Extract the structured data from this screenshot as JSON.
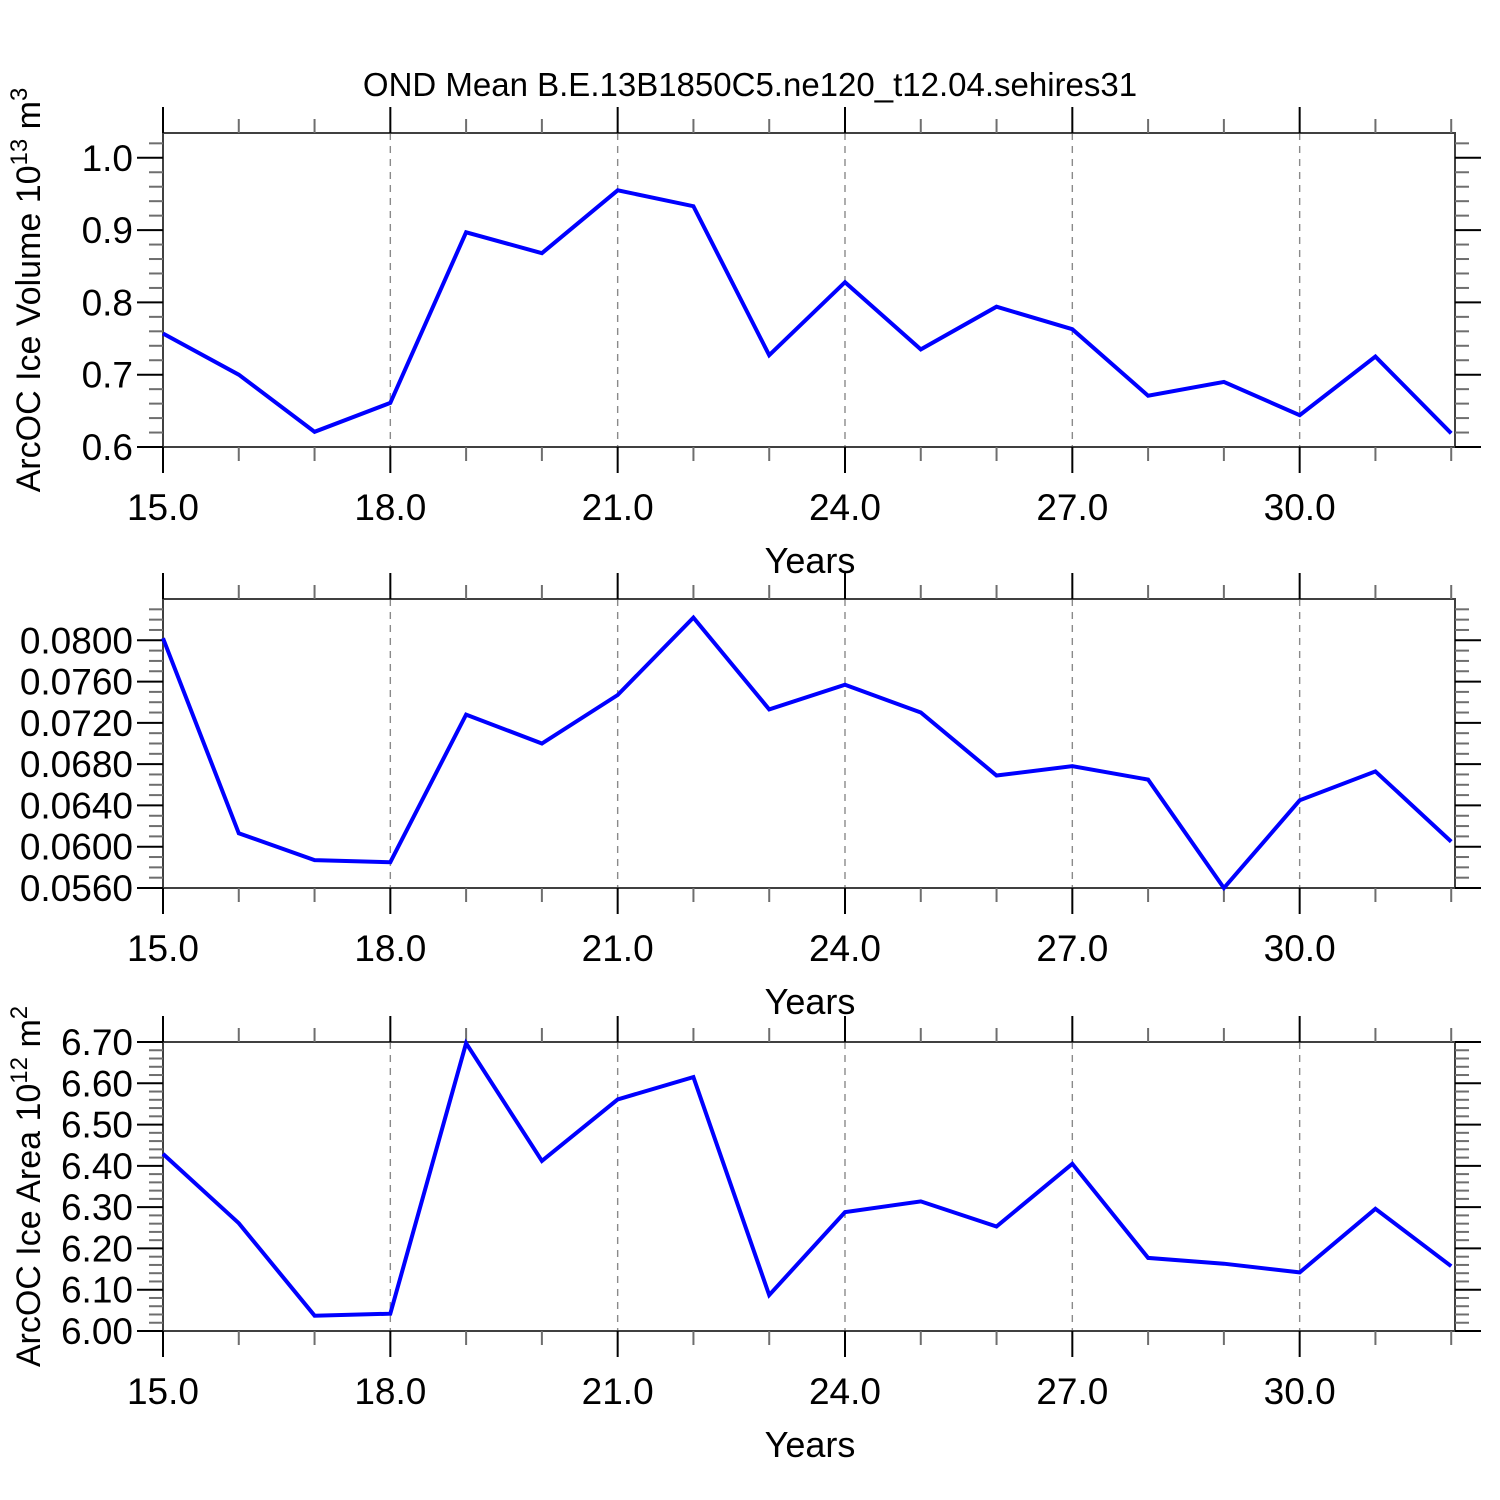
{
  "page_title": "OND Mean B.E.13B1850C5.ne120_t12.04.sehires31",
  "colors": {
    "line": "#0000ff",
    "frame": "#404040",
    "tick_major": "#000000",
    "tick_minor": "#6e6e6e",
    "grid": "#8a8a8a",
    "text": "#000000",
    "background": "#ffffff"
  },
  "chart_data": [
    {
      "type": "line",
      "name": "arcoc-ice-volume",
      "title": "",
      "ylabel": "ArcOC Ice Volume 10^13 m^3",
      "ylabel_parts": [
        {
          "text": "ArcOC Ice Volume 10"
        },
        {
          "text": "13",
          "sup": true
        },
        {
          "text": " m"
        },
        {
          "text": "3",
          "sup": true
        }
      ],
      "xlabel": "Years",
      "x": [
        15,
        16,
        17,
        18,
        19,
        20,
        21,
        22,
        23,
        24,
        25,
        26,
        27,
        28,
        29,
        30,
        31,
        32
      ],
      "values": [
        0.757,
        0.7,
        0.621,
        0.661,
        0.897,
        0.868,
        0.955,
        0.933,
        0.727,
        0.828,
        0.735,
        0.794,
        0.763,
        0.671,
        0.69,
        0.644,
        0.725,
        0.619
      ],
      "xlim": [
        15,
        32.05
      ],
      "ylim": [
        0.6,
        1.0343
      ],
      "yticks": [
        {
          "value": 1.0,
          "label": "1.0"
        },
        {
          "value": 0.9,
          "label": "0.9"
        },
        {
          "value": 0.8,
          "label": "0.8"
        },
        {
          "value": 0.7,
          "label": "0.7"
        },
        {
          "value": 0.6,
          "label": "0.6"
        }
      ],
      "ytick_minor_step": 0.02,
      "xticks": [
        {
          "value": 15,
          "label": "15.0"
        },
        {
          "value": 18,
          "label": "18.0"
        },
        {
          "value": 21,
          "label": "21.0"
        },
        {
          "value": 24,
          "label": "24.0"
        },
        {
          "value": 27,
          "label": "27.0"
        },
        {
          "value": 30,
          "label": "30.0"
        }
      ],
      "xtick_minor_step": 1,
      "grid_x": [
        18,
        21,
        24,
        27,
        30
      ],
      "grid_style": "vertical-dashed",
      "legend": "none"
    },
    {
      "type": "line",
      "name": "arcoc-ice-thickness-ratio",
      "title": "",
      "ylabel": "",
      "ylabel_parts": [],
      "xlabel": "Years",
      "x": [
        15,
        16,
        17,
        18,
        19,
        20,
        21,
        22,
        23,
        24,
        25,
        26,
        27,
        28,
        29,
        30,
        31,
        32
      ],
      "values": [
        0.0802,
        0.0613,
        0.0587,
        0.0585,
        0.0728,
        0.07,
        0.0747,
        0.0822,
        0.0733,
        0.0757,
        0.073,
        0.0669,
        0.0678,
        0.0665,
        0.056,
        0.0645,
        0.0673,
        0.0605
      ],
      "xlim": [
        15,
        32.05
      ],
      "ylim": [
        0.056,
        0.084
      ],
      "yticks": [
        {
          "value": 0.08,
          "label": "0.0800"
        },
        {
          "value": 0.076,
          "label": "0.0760"
        },
        {
          "value": 0.072,
          "label": "0.0720"
        },
        {
          "value": 0.068,
          "label": "0.0680"
        },
        {
          "value": 0.064,
          "label": "0.0640"
        },
        {
          "value": 0.06,
          "label": "0.0600"
        },
        {
          "value": 0.056,
          "label": "0.0560"
        }
      ],
      "ytick_minor_step": 0.001,
      "xticks": [
        {
          "value": 15,
          "label": "15.0"
        },
        {
          "value": 18,
          "label": "18.0"
        },
        {
          "value": 21,
          "label": "21.0"
        },
        {
          "value": 24,
          "label": "24.0"
        },
        {
          "value": 27,
          "label": "27.0"
        },
        {
          "value": 30,
          "label": "30.0"
        }
      ],
      "xtick_minor_step": 1,
      "grid_x": [
        18,
        21,
        24,
        27,
        30
      ],
      "grid_style": "vertical-dashed",
      "legend": "none"
    },
    {
      "type": "line",
      "name": "arcoc-ice-area",
      "title": "",
      "ylabel": "ArcOC Ice Area 10^12 m^2",
      "ylabel_parts": [
        {
          "text": "ArcOC Ice Area 10"
        },
        {
          "text": "12",
          "sup": true
        },
        {
          "text": " m"
        },
        {
          "text": "2",
          "sup": true
        }
      ],
      "xlabel": "Years",
      "x": [
        15,
        16,
        17,
        18,
        19,
        20,
        21,
        22,
        23,
        24,
        25,
        26,
        27,
        28,
        29,
        30,
        31,
        32
      ],
      "values": [
        6.429,
        6.261,
        6.037,
        6.042,
        6.697,
        6.412,
        6.561,
        6.615,
        6.087,
        6.288,
        6.314,
        6.253,
        6.405,
        6.177,
        6.163,
        6.142,
        6.296,
        6.157
      ],
      "xlim": [
        15,
        32.05
      ],
      "ylim": [
        6.0,
        6.7
      ],
      "yticks": [
        {
          "value": 6.7,
          "label": "6.70"
        },
        {
          "value": 6.6,
          "label": "6.60"
        },
        {
          "value": 6.5,
          "label": "6.50"
        },
        {
          "value": 6.4,
          "label": "6.40"
        },
        {
          "value": 6.3,
          "label": "6.30"
        },
        {
          "value": 6.2,
          "label": "6.20"
        },
        {
          "value": 6.1,
          "label": "6.10"
        },
        {
          "value": 6.0,
          "label": "6.00"
        }
      ],
      "ytick_minor_step": 0.02,
      "xticks": [
        {
          "value": 15,
          "label": "15.0"
        },
        {
          "value": 18,
          "label": "18.0"
        },
        {
          "value": 21,
          "label": "21.0"
        },
        {
          "value": 24,
          "label": "24.0"
        },
        {
          "value": 27,
          "label": "27.0"
        },
        {
          "value": 30,
          "label": "30.0"
        }
      ],
      "xtick_minor_step": 1,
      "grid_x": [
        18,
        21,
        24,
        27,
        30
      ],
      "grid_style": "vertical-dashed",
      "legend": "none"
    }
  ]
}
